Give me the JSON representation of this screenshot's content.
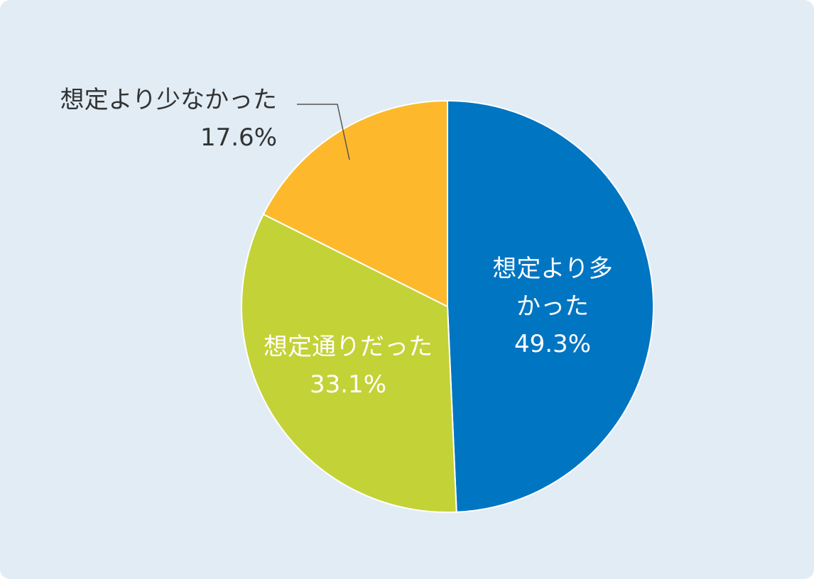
{
  "chart_data": {
    "type": "pie",
    "categories": [
      "想定より多かった",
      "想定通りだった",
      "想定より少なかった"
    ],
    "values": [
      49.3,
      33.1,
      17.6
    ],
    "value_labels": [
      "49.3%",
      "33.1%",
      "17.6%"
    ],
    "colors": [
      "#0075c2",
      "#c3d236",
      "#fdb92b"
    ]
  }
}
